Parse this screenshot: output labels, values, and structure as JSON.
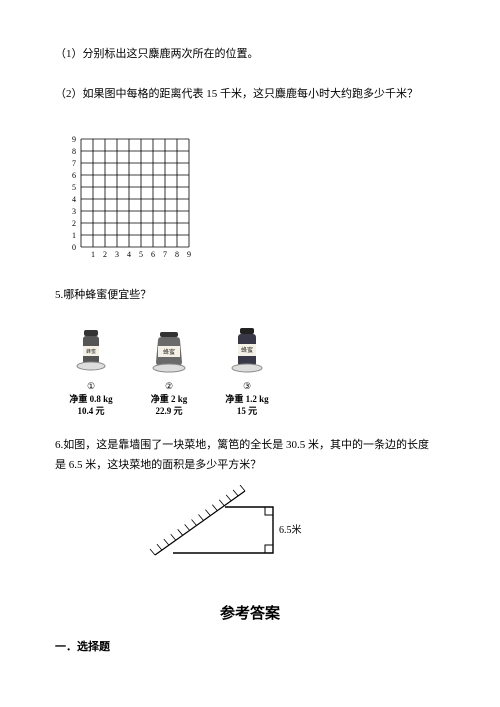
{
  "q1": {
    "text": "（1）分别标出这只麋鹿两次所在的位置。"
  },
  "q2": {
    "text": "（2）如果图中每格的距离代表 15 千米，这只麋鹿每小时大约跑多少千米？"
  },
  "grid": {
    "x_labels": [
      "1",
      "2",
      "3",
      "4",
      "5",
      "6",
      "7",
      "8",
      "9"
    ],
    "y_labels": [
      "0",
      "1",
      "2",
      "3",
      "4",
      "5",
      "6",
      "7",
      "8",
      "9"
    ],
    "cell_size": 12,
    "line_color": "#000000",
    "label_fontsize": 8
  },
  "q5": {
    "text": "5.哪种蜂蜜便宜些？",
    "items": [
      {
        "num": "①",
        "weight": "净重 0.8 kg",
        "price": "10.4 元",
        "jar_color": "#555555",
        "label": "蜂蜜"
      },
      {
        "num": "②",
        "weight": "净重 2 kg",
        "price": "22.9 元",
        "jar_color": "#6a6a6a",
        "label": "蜂蜜"
      },
      {
        "num": "③",
        "weight": "净重 1.2 kg",
        "price": "15 元",
        "jar_color": "#383848",
        "label": "蜂蜜"
      }
    ]
  },
  "q6": {
    "text1": "6.如图，这是靠墙围了一块菜地，篱笆的全长是 30.5 米，其中的一条边的长度",
    "text2": "是 6.5 米，这块菜地的面积是多少平方米？",
    "side_label": "6.5米",
    "line_color": "#000000"
  },
  "answers": {
    "title": "参考答案",
    "section1": "一．选择题"
  },
  "colors": {
    "text": "#000000",
    "bg": "#ffffff"
  }
}
